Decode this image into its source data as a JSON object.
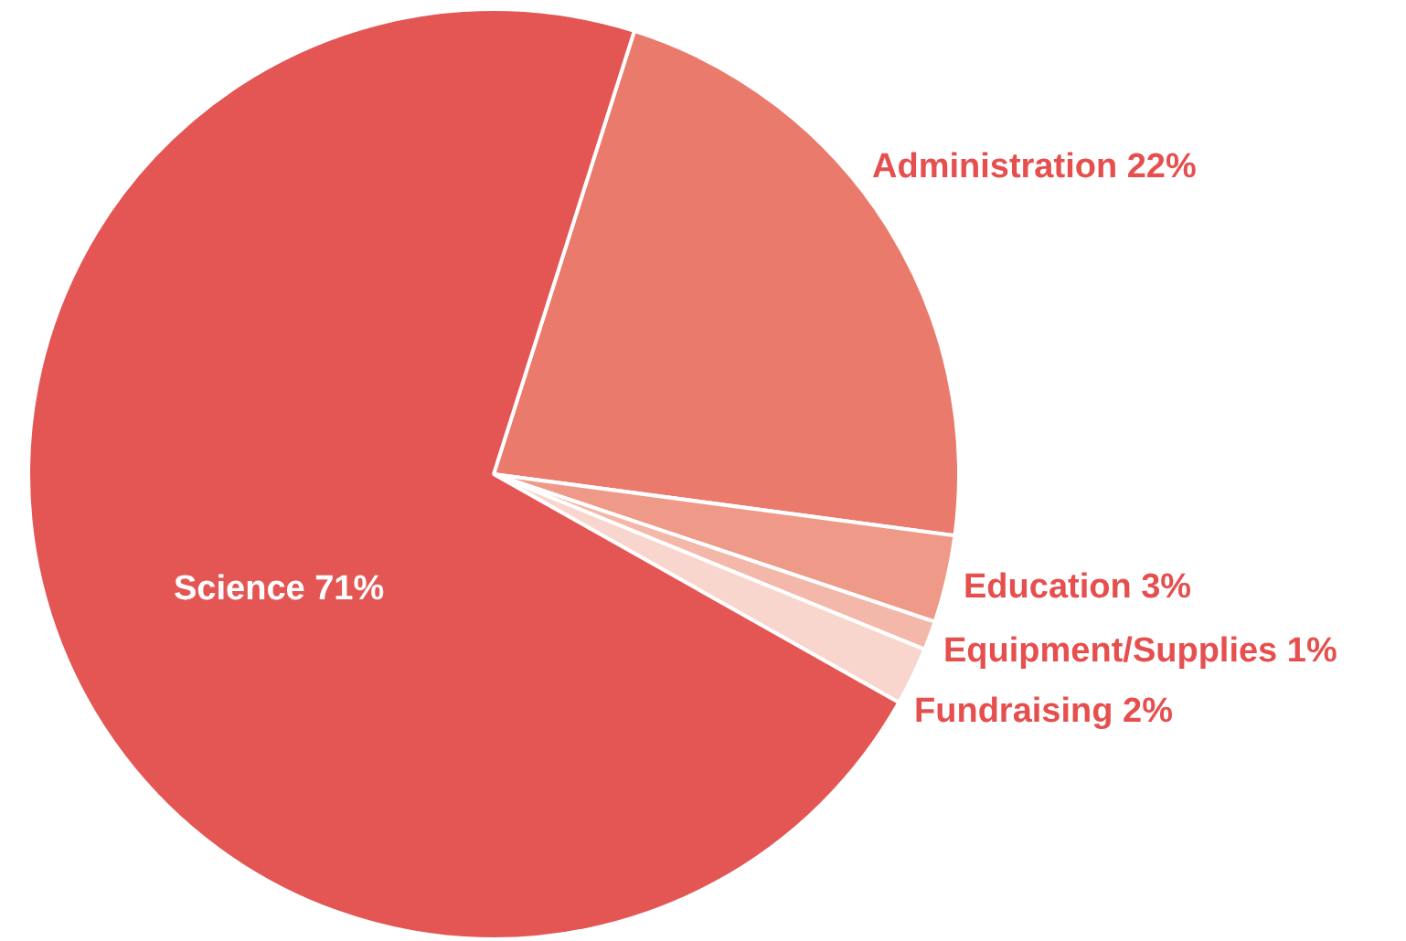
{
  "chart_data": {
    "type": "pie",
    "categories": [
      "Administration",
      "Education",
      "Equipment/Supplies",
      "Fundraising",
      "Science"
    ],
    "values": [
      22,
      3,
      1,
      2,
      71
    ],
    "colors": [
      "#ea7b6c",
      "#ef9a88",
      "#f3b8aa",
      "#f8d6cd",
      "#e35654"
    ],
    "value_labels": [
      "22%",
      "3%",
      "1%",
      "2%",
      "71%"
    ],
    "legend": false
  }
}
